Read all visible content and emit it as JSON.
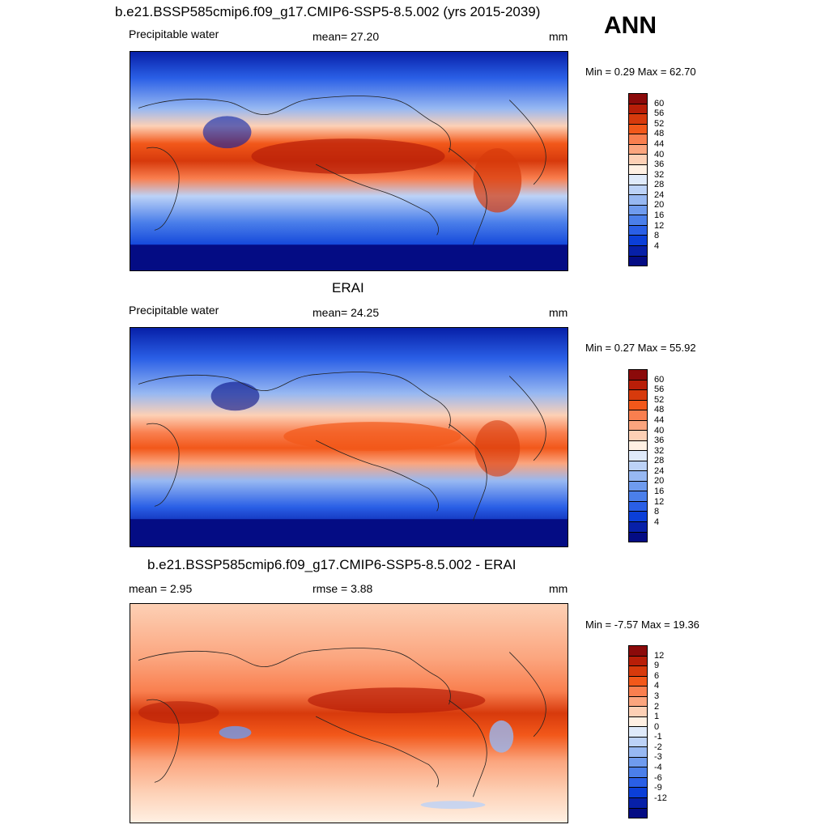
{
  "header": {
    "main_title": "b.e21.BSSP585cmip6.f09_g17.CMIP6-SSP5-8.5.002 (yrs 2015-2039)",
    "season": "ANN"
  },
  "panels": [
    {
      "left_label": "Precipitable water",
      "center_label": "mean=  27.20",
      "units": "mm",
      "minmax": "Min =   0.29 Max =  62.70",
      "colorbar": {
        "colors": [
          "#8b0a0a",
          "#b81e08",
          "#d73a0c",
          "#f2581a",
          "#f97f4f",
          "#fba57e",
          "#fdd0b5",
          "#fff0e3",
          "#dfeafa",
          "#bcd2f7",
          "#97b8f2",
          "#6f9bee",
          "#4b7fea",
          "#2a5fe6",
          "#0b3fd8",
          "#0720a8",
          "#040c84"
        ],
        "ticks": [
          "60",
          "56",
          "52",
          "48",
          "44",
          "40",
          "36",
          "32",
          "28",
          "24",
          "20",
          "16",
          "12",
          "8",
          "4"
        ]
      }
    },
    {
      "subtitle": "ERAI",
      "left_label": "Precipitable water",
      "center_label": "mean=  24.25",
      "units": "mm",
      "minmax": "Min =   0.27 Max =  55.92",
      "colorbar": {
        "colors": [
          "#8b0a0a",
          "#b81e08",
          "#d73a0c",
          "#f2581a",
          "#f97f4f",
          "#fba57e",
          "#fdd0b5",
          "#fff0e3",
          "#dfeafa",
          "#bcd2f7",
          "#97b8f2",
          "#6f9bee",
          "#4b7fea",
          "#2a5fe6",
          "#0b3fd8",
          "#0720a8",
          "#040c84"
        ],
        "ticks": [
          "60",
          "56",
          "52",
          "48",
          "44",
          "40",
          "36",
          "32",
          "28",
          "24",
          "20",
          "16",
          "12",
          "8",
          "4"
        ]
      }
    },
    {
      "subtitle": "b.e21.BSSP585cmip6.f09_g17.CMIP6-SSP5-8.5.002 - ERAI",
      "left_label": "mean =   2.95",
      "center_label": "rmse =   3.88",
      "units": "mm",
      "minmax": "Min =  -7.57 Max =  19.36",
      "colorbar": {
        "colors": [
          "#8b0a0a",
          "#b81e08",
          "#d73a0c",
          "#f2581a",
          "#f97f4f",
          "#fba57e",
          "#fdd0b5",
          "#fff0e3",
          "#dfeafa",
          "#bcd2f7",
          "#97b8f2",
          "#6f9bee",
          "#4b7fea",
          "#2a5fe6",
          "#0b3fd8",
          "#0720a8",
          "#040c84"
        ],
        "ticks": [
          "12",
          "9",
          "6",
          "4",
          "3",
          "2",
          "1",
          "0",
          "-1",
          "-2",
          "-3",
          "-4",
          "-6",
          "-9",
          "-12"
        ]
      }
    }
  ]
}
